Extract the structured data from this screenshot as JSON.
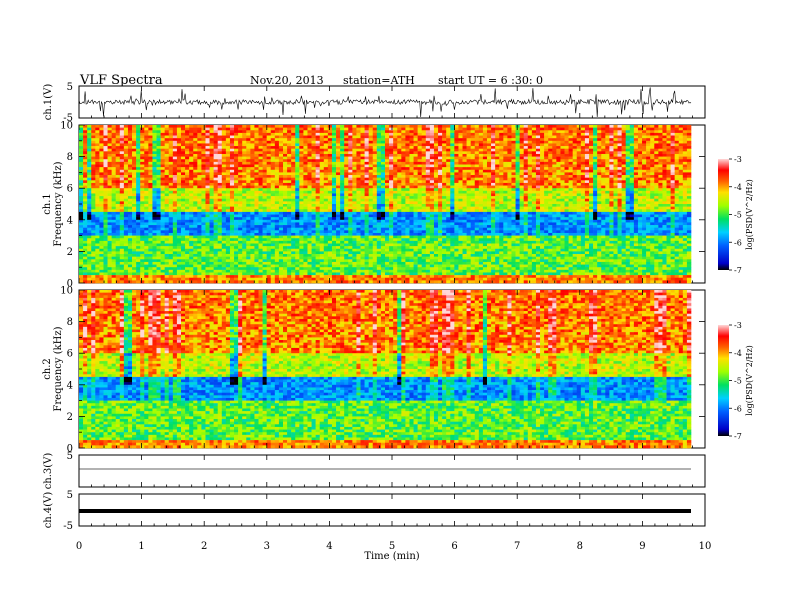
{
  "header": {
    "title": "VLF  Spectra",
    "date": "Nov.20, 2013",
    "station": "station=ATH",
    "start": "start  UT  =   6  :30: 0"
  },
  "chart_data": [
    {
      "type": "line",
      "id": "ch1",
      "ylabel": "ch.1(V)",
      "ylim": [
        -5,
        5
      ],
      "yticks": [
        "5",
        "-5"
      ],
      "xlim": [
        0,
        10
      ],
      "description_level": {
        "baseline": 0,
        "spike_amplitude": 4
      }
    },
    {
      "type": "heatmap",
      "id": "ch1-spectrogram",
      "ylabel_line1": "ch.1",
      "ylabel_line2": "Frequency (kHz)",
      "ylim": [
        0,
        10
      ],
      "yticks": [
        "0",
        "2",
        "4",
        "6",
        "8",
        "10"
      ],
      "xlim": [
        0,
        9.8
      ],
      "colorbar": {
        "label": "log(PSD(V^2/Hz)",
        "range": [
          -7,
          -3
        ],
        "ticks": [
          "-3",
          "-4",
          "-5",
          "-6",
          "-7"
        ]
      }
    },
    {
      "type": "heatmap",
      "id": "ch2-spectrogram",
      "ylabel_line1": "ch.2",
      "ylabel_line2": "Frequency (kHz)",
      "ylim": [
        0,
        10
      ],
      "yticks": [
        "0",
        "2",
        "4",
        "6",
        "8",
        "10"
      ],
      "xlim": [
        0,
        9.8
      ],
      "colorbar": {
        "label": "log(PSD(V^2/Hz)",
        "range": [
          -7,
          -3
        ],
        "ticks": [
          "-3",
          "-4",
          "-5",
          "-6",
          "-7"
        ]
      }
    },
    {
      "type": "line",
      "id": "ch3",
      "ylabel": "ch.3(V)",
      "ylim": [
        -5,
        5
      ],
      "yticks": [
        "5"
      ],
      "xlim": [
        0,
        9.8
      ],
      "level": 0
    },
    {
      "type": "line",
      "id": "ch4",
      "ylabel": "ch.4(V)",
      "ylim": [
        -5,
        5
      ],
      "yticks": [
        "5",
        "-5"
      ],
      "xlim": [
        0,
        9.8
      ],
      "level": 0
    }
  ],
  "xaxis": {
    "label": "Time  (min)",
    "range": [
      0,
      10
    ],
    "ticks": [
      "0",
      "1",
      "2",
      "3",
      "4",
      "5",
      "6",
      "7",
      "8",
      "9",
      "10"
    ]
  },
  "colors": {
    "spectro_high": "#ff2000",
    "spectro_mid": "#33ee33",
    "spectro_low": "#0000cc"
  }
}
